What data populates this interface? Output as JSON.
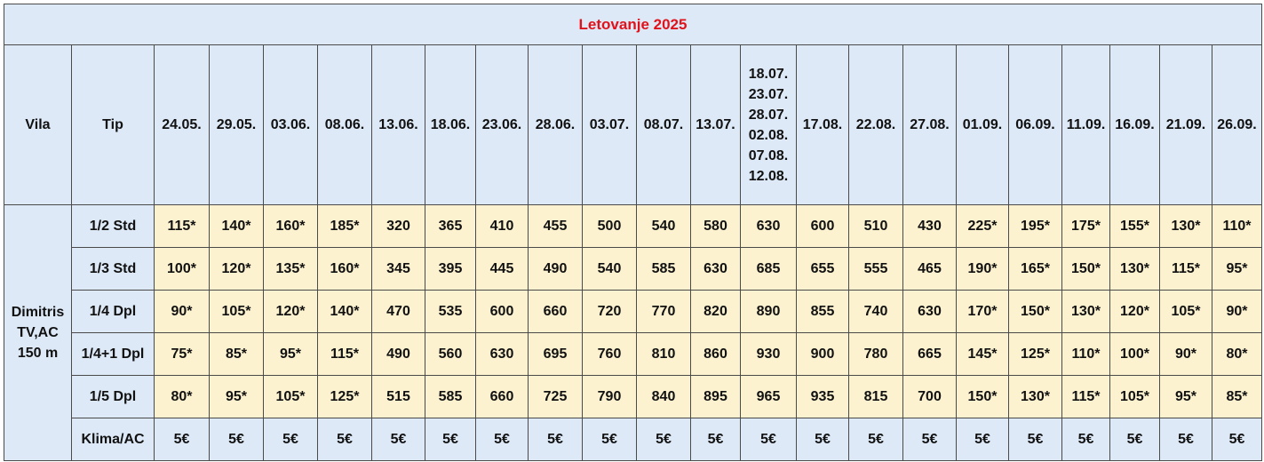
{
  "table": {
    "title": "Letovanje 2025",
    "header": {
      "vila": "Vila",
      "tip": "Tip",
      "dates": [
        [
          "24.05."
        ],
        [
          "29.05."
        ],
        [
          "03.06."
        ],
        [
          "08.06."
        ],
        [
          "13.06."
        ],
        [
          "18.06."
        ],
        [
          "23.06."
        ],
        [
          "28.06."
        ],
        [
          "03.07."
        ],
        [
          "08.07."
        ],
        [
          "13.07."
        ],
        [
          "18.07.",
          "23.07.",
          "28.07.",
          "02.08.",
          "07.08.",
          "12.08."
        ],
        [
          "17.08."
        ],
        [
          "22.08."
        ],
        [
          "27.08."
        ],
        [
          "01.09."
        ],
        [
          "06.09."
        ],
        [
          "11.09."
        ],
        [
          "16.09."
        ],
        [
          "21.09."
        ],
        [
          "26.09."
        ]
      ]
    },
    "villa": [
      "Dimitris",
      "TV,AC",
      "150 m"
    ],
    "rows": [
      {
        "type": "1/2 Std",
        "prices": [
          "115*",
          "140*",
          "160*",
          "185*",
          "320",
          "365",
          "410",
          "455",
          "500",
          "540",
          "580",
          "630",
          "600",
          "510",
          "430",
          "225*",
          "195*",
          "175*",
          "155*",
          "130*",
          "110*"
        ]
      },
      {
        "type": "1/3 Std",
        "prices": [
          "100*",
          "120*",
          "135*",
          "160*",
          "345",
          "395",
          "445",
          "490",
          "540",
          "585",
          "630",
          "685",
          "655",
          "555",
          "465",
          "190*",
          "165*",
          "150*",
          "130*",
          "115*",
          "95*"
        ]
      },
      {
        "type": "1/4 Dpl",
        "prices": [
          "90*",
          "105*",
          "120*",
          "140*",
          "470",
          "535",
          "600",
          "660",
          "720",
          "770",
          "820",
          "890",
          "855",
          "740",
          "630",
          "170*",
          "150*",
          "130*",
          "120*",
          "105*",
          "90*"
        ]
      },
      {
        "type": "1/4+1 Dpl",
        "prices": [
          "75*",
          "85*",
          "95*",
          "115*",
          "490",
          "560",
          "630",
          "695",
          "760",
          "810",
          "860",
          "930",
          "900",
          "780",
          "665",
          "145*",
          "125*",
          "110*",
          "100*",
          "90*",
          "80*"
        ]
      },
      {
        "type": "1/5 Dpl",
        "prices": [
          "80*",
          "95*",
          "105*",
          "125*",
          "515",
          "585",
          "660",
          "725",
          "790",
          "840",
          "895",
          "965",
          "935",
          "815",
          "700",
          "150*",
          "130*",
          "115*",
          "105*",
          "95*",
          "85*"
        ]
      },
      {
        "type": "Klima/AC",
        "prices": [
          "5€",
          "5€",
          "5€",
          "5€",
          "5€",
          "5€",
          "5€",
          "5€",
          "5€",
          "5€",
          "5€",
          "5€",
          "5€",
          "5€",
          "5€",
          "5€",
          "5€",
          "5€",
          "5€",
          "5€",
          "5€"
        ]
      }
    ]
  }
}
